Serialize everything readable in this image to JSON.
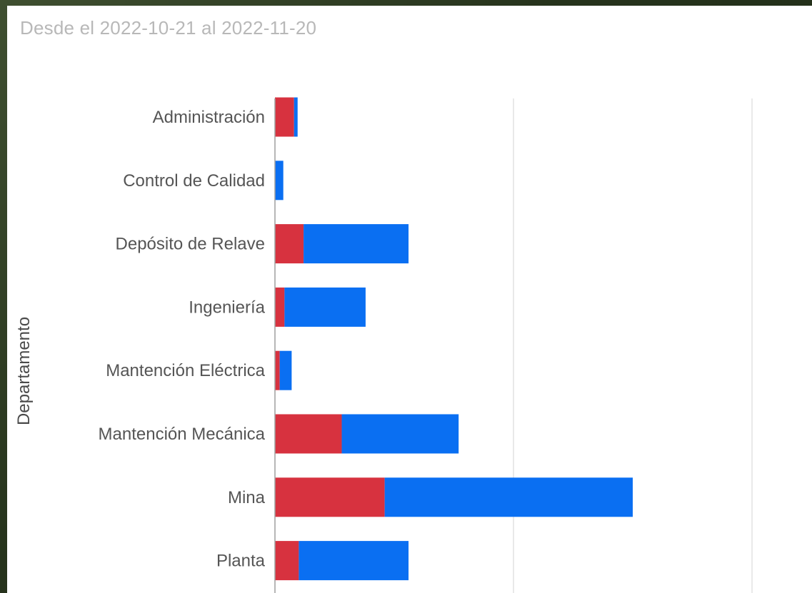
{
  "header": {
    "subtitle": "Desde el 2022-10-21 al 2022-11-20"
  },
  "chart_data": {
    "type": "bar",
    "orientation": "horizontal",
    "stacked": true,
    "title": "",
    "subtitle": "Desde el 2022-10-21 al 2022-11-20",
    "ylabel": "Departamento",
    "xlabel": "",
    "categories": [
      "Administración",
      "Control de Calidad",
      "Depósito de Relave",
      "Ingeniería",
      "Mantención Eléctrica",
      "Mantención Mecánica",
      "Mina",
      "Planta"
    ],
    "series": [
      {
        "color": "#d7323f",
        "values": [
          8,
          0,
          12,
          4,
          2,
          28,
          46,
          10
        ]
      },
      {
        "color": "#0a6ff2",
        "values": [
          1.5,
          3.5,
          44,
          34,
          5,
          49,
          104,
          46
        ]
      }
    ],
    "xlim": [
      0,
      200
    ],
    "gridlines": [
      100,
      200
    ],
    "grid": true,
    "legend": "none"
  }
}
